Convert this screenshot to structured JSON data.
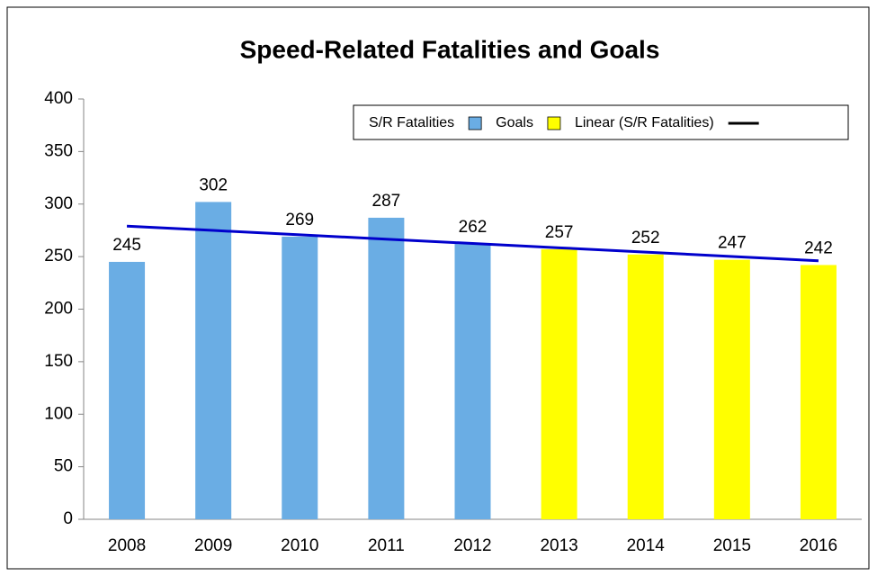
{
  "chart_data": {
    "type": "bar",
    "title": "Speed-Related Fatalities and Goals",
    "categories": [
      "2008",
      "2009",
      "2010",
      "2011",
      "2012",
      "2013",
      "2014",
      "2015",
      "2016"
    ],
    "series": [
      {
        "name": "S/R Fatalities",
        "color": "#6aade4",
        "values": [
          245,
          302,
          269,
          287,
          262,
          null,
          null,
          null,
          null
        ]
      },
      {
        "name": "Goals",
        "color": "#ffff00",
        "values": [
          null,
          null,
          null,
          null,
          null,
          257,
          252,
          247,
          242
        ]
      },
      {
        "name": "Linear (S/R Fatalities)",
        "color": "#0000cc",
        "type": "line",
        "values": [
          279,
          274.9,
          270.8,
          266.6,
          262.5,
          258.4,
          254.3,
          250.1,
          246
        ]
      }
    ],
    "ylim": [
      0,
      400
    ],
    "yticks": [
      0,
      50,
      100,
      150,
      200,
      250,
      300,
      350,
      400
    ],
    "grid": false,
    "legend": "top-right"
  }
}
